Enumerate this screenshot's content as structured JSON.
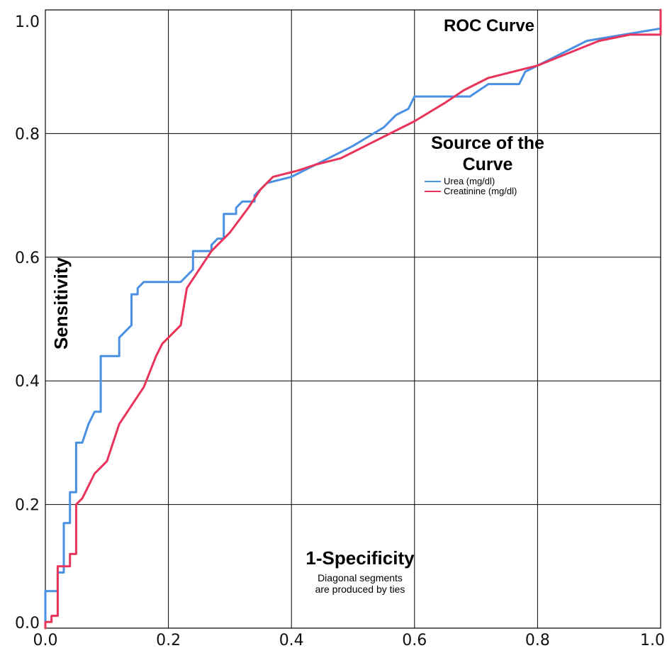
{
  "chart_data": {
    "type": "line",
    "title": "ROC Curve",
    "xlabel": "1-Specificity",
    "ylabel": "Sensitivity",
    "xlim": [
      0,
      1
    ],
    "ylim": [
      0,
      1
    ],
    "x_ticks": [
      "0.0",
      "0.2",
      "0.4",
      "0.6",
      "0.8",
      "1.0"
    ],
    "y_ticks": [
      "0.0",
      "0.2",
      "0.4",
      "0.6",
      "0.8",
      "1.0"
    ],
    "grid": true,
    "legend": {
      "title_line1": "Source of the",
      "title_line2": "Curve",
      "placement": "upper-right"
    },
    "note_line1": "Diagonal segments",
    "note_line2": "are produced by ties",
    "series": [
      {
        "name": "Urea (mg/dl)",
        "color": "#4a90e2",
        "points": [
          [
            0.0,
            0.0
          ],
          [
            0.0,
            0.06
          ],
          [
            0.02,
            0.06
          ],
          [
            0.02,
            0.09
          ],
          [
            0.03,
            0.09
          ],
          [
            0.03,
            0.17
          ],
          [
            0.04,
            0.17
          ],
          [
            0.04,
            0.22
          ],
          [
            0.05,
            0.22
          ],
          [
            0.05,
            0.3
          ],
          [
            0.06,
            0.3
          ],
          [
            0.07,
            0.33
          ],
          [
            0.08,
            0.35
          ],
          [
            0.09,
            0.35
          ],
          [
            0.09,
            0.44
          ],
          [
            0.12,
            0.44
          ],
          [
            0.12,
            0.47
          ],
          [
            0.14,
            0.49
          ],
          [
            0.14,
            0.54
          ],
          [
            0.15,
            0.54
          ],
          [
            0.15,
            0.55
          ],
          [
            0.16,
            0.56
          ],
          [
            0.17,
            0.56
          ],
          [
            0.22,
            0.56
          ],
          [
            0.24,
            0.58
          ],
          [
            0.24,
            0.61
          ],
          [
            0.27,
            0.61
          ],
          [
            0.27,
            0.62
          ],
          [
            0.28,
            0.63
          ],
          [
            0.29,
            0.63
          ],
          [
            0.29,
            0.67
          ],
          [
            0.31,
            0.67
          ],
          [
            0.31,
            0.68
          ],
          [
            0.32,
            0.69
          ],
          [
            0.34,
            0.69
          ],
          [
            0.34,
            0.7
          ],
          [
            0.36,
            0.72
          ],
          [
            0.4,
            0.73
          ],
          [
            0.46,
            0.76
          ],
          [
            0.5,
            0.78
          ],
          [
            0.55,
            0.81
          ],
          [
            0.57,
            0.83
          ],
          [
            0.59,
            0.84
          ],
          [
            0.6,
            0.86
          ],
          [
            0.62,
            0.86
          ],
          [
            0.69,
            0.86
          ],
          [
            0.72,
            0.88
          ],
          [
            0.77,
            0.88
          ],
          [
            0.78,
            0.9
          ],
          [
            0.8,
            0.91
          ],
          [
            0.88,
            0.95
          ],
          [
            0.94,
            0.96
          ],
          [
            1.0,
            0.97
          ],
          [
            1.0,
            1.0
          ]
        ]
      },
      {
        "name": "Creatinine (mg/dl)",
        "color": "#e8335a",
        "points": [
          [
            0.0,
            0.0
          ],
          [
            0.0,
            0.01
          ],
          [
            0.01,
            0.01
          ],
          [
            0.01,
            0.02
          ],
          [
            0.02,
            0.02
          ],
          [
            0.02,
            0.1
          ],
          [
            0.03,
            0.1
          ],
          [
            0.04,
            0.1
          ],
          [
            0.04,
            0.12
          ],
          [
            0.05,
            0.12
          ],
          [
            0.05,
            0.2
          ],
          [
            0.06,
            0.21
          ],
          [
            0.07,
            0.23
          ],
          [
            0.08,
            0.25
          ],
          [
            0.09,
            0.26
          ],
          [
            0.1,
            0.27
          ],
          [
            0.11,
            0.3
          ],
          [
            0.12,
            0.33
          ],
          [
            0.14,
            0.36
          ],
          [
            0.16,
            0.39
          ],
          [
            0.18,
            0.44
          ],
          [
            0.19,
            0.46
          ],
          [
            0.21,
            0.48
          ],
          [
            0.22,
            0.49
          ],
          [
            0.23,
            0.55
          ],
          [
            0.25,
            0.58
          ],
          [
            0.27,
            0.61
          ],
          [
            0.3,
            0.64
          ],
          [
            0.33,
            0.68
          ],
          [
            0.35,
            0.71
          ],
          [
            0.37,
            0.73
          ],
          [
            0.41,
            0.74
          ],
          [
            0.44,
            0.75
          ],
          [
            0.48,
            0.76
          ],
          [
            0.5,
            0.77
          ],
          [
            0.52,
            0.78
          ],
          [
            0.56,
            0.8
          ],
          [
            0.6,
            0.82
          ],
          [
            0.65,
            0.85
          ],
          [
            0.68,
            0.87
          ],
          [
            0.72,
            0.89
          ],
          [
            0.76,
            0.9
          ],
          [
            0.8,
            0.91
          ],
          [
            0.85,
            0.93
          ],
          [
            0.9,
            0.95
          ],
          [
            0.95,
            0.96
          ],
          [
            0.99,
            0.96
          ],
          [
            1.0,
            0.96
          ],
          [
            1.0,
            1.0
          ]
        ]
      }
    ]
  }
}
